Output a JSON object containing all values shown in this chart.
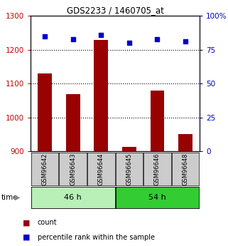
{
  "title": "GDS2233 / 1460705_at",
  "samples": [
    "GSM96642",
    "GSM96643",
    "GSM96644",
    "GSM96645",
    "GSM96646",
    "GSM96648"
  ],
  "count_values": [
    1130,
    1070,
    1230,
    912,
    1080,
    950
  ],
  "percentile_values": [
    85,
    83,
    86,
    80,
    83,
    81
  ],
  "groups": [
    {
      "label": "46 h",
      "indices": [
        0,
        1,
        2
      ],
      "color": "#b8f0b8"
    },
    {
      "label": "54 h",
      "indices": [
        3,
        4,
        5
      ],
      "color": "#33cc33"
    }
  ],
  "left_ylim": [
    900,
    1300
  ],
  "right_ylim": [
    0,
    100
  ],
  "left_yticks": [
    900,
    1000,
    1100,
    1200,
    1300
  ],
  "right_yticks": [
    0,
    25,
    50,
    75,
    100
  ],
  "right_yticklabels": [
    "0",
    "25",
    "50",
    "75",
    "100%"
  ],
  "bar_color": "#990000",
  "marker_color": "#0000cc",
  "tick_label_color_left": "#cc0000",
  "tick_label_color_right": "#0000cc",
  "grid_color": "#000000",
  "sample_box_color": "#cccccc",
  "bar_width": 0.5,
  "figsize": [
    3.21,
    3.45
  ],
  "dpi": 100
}
